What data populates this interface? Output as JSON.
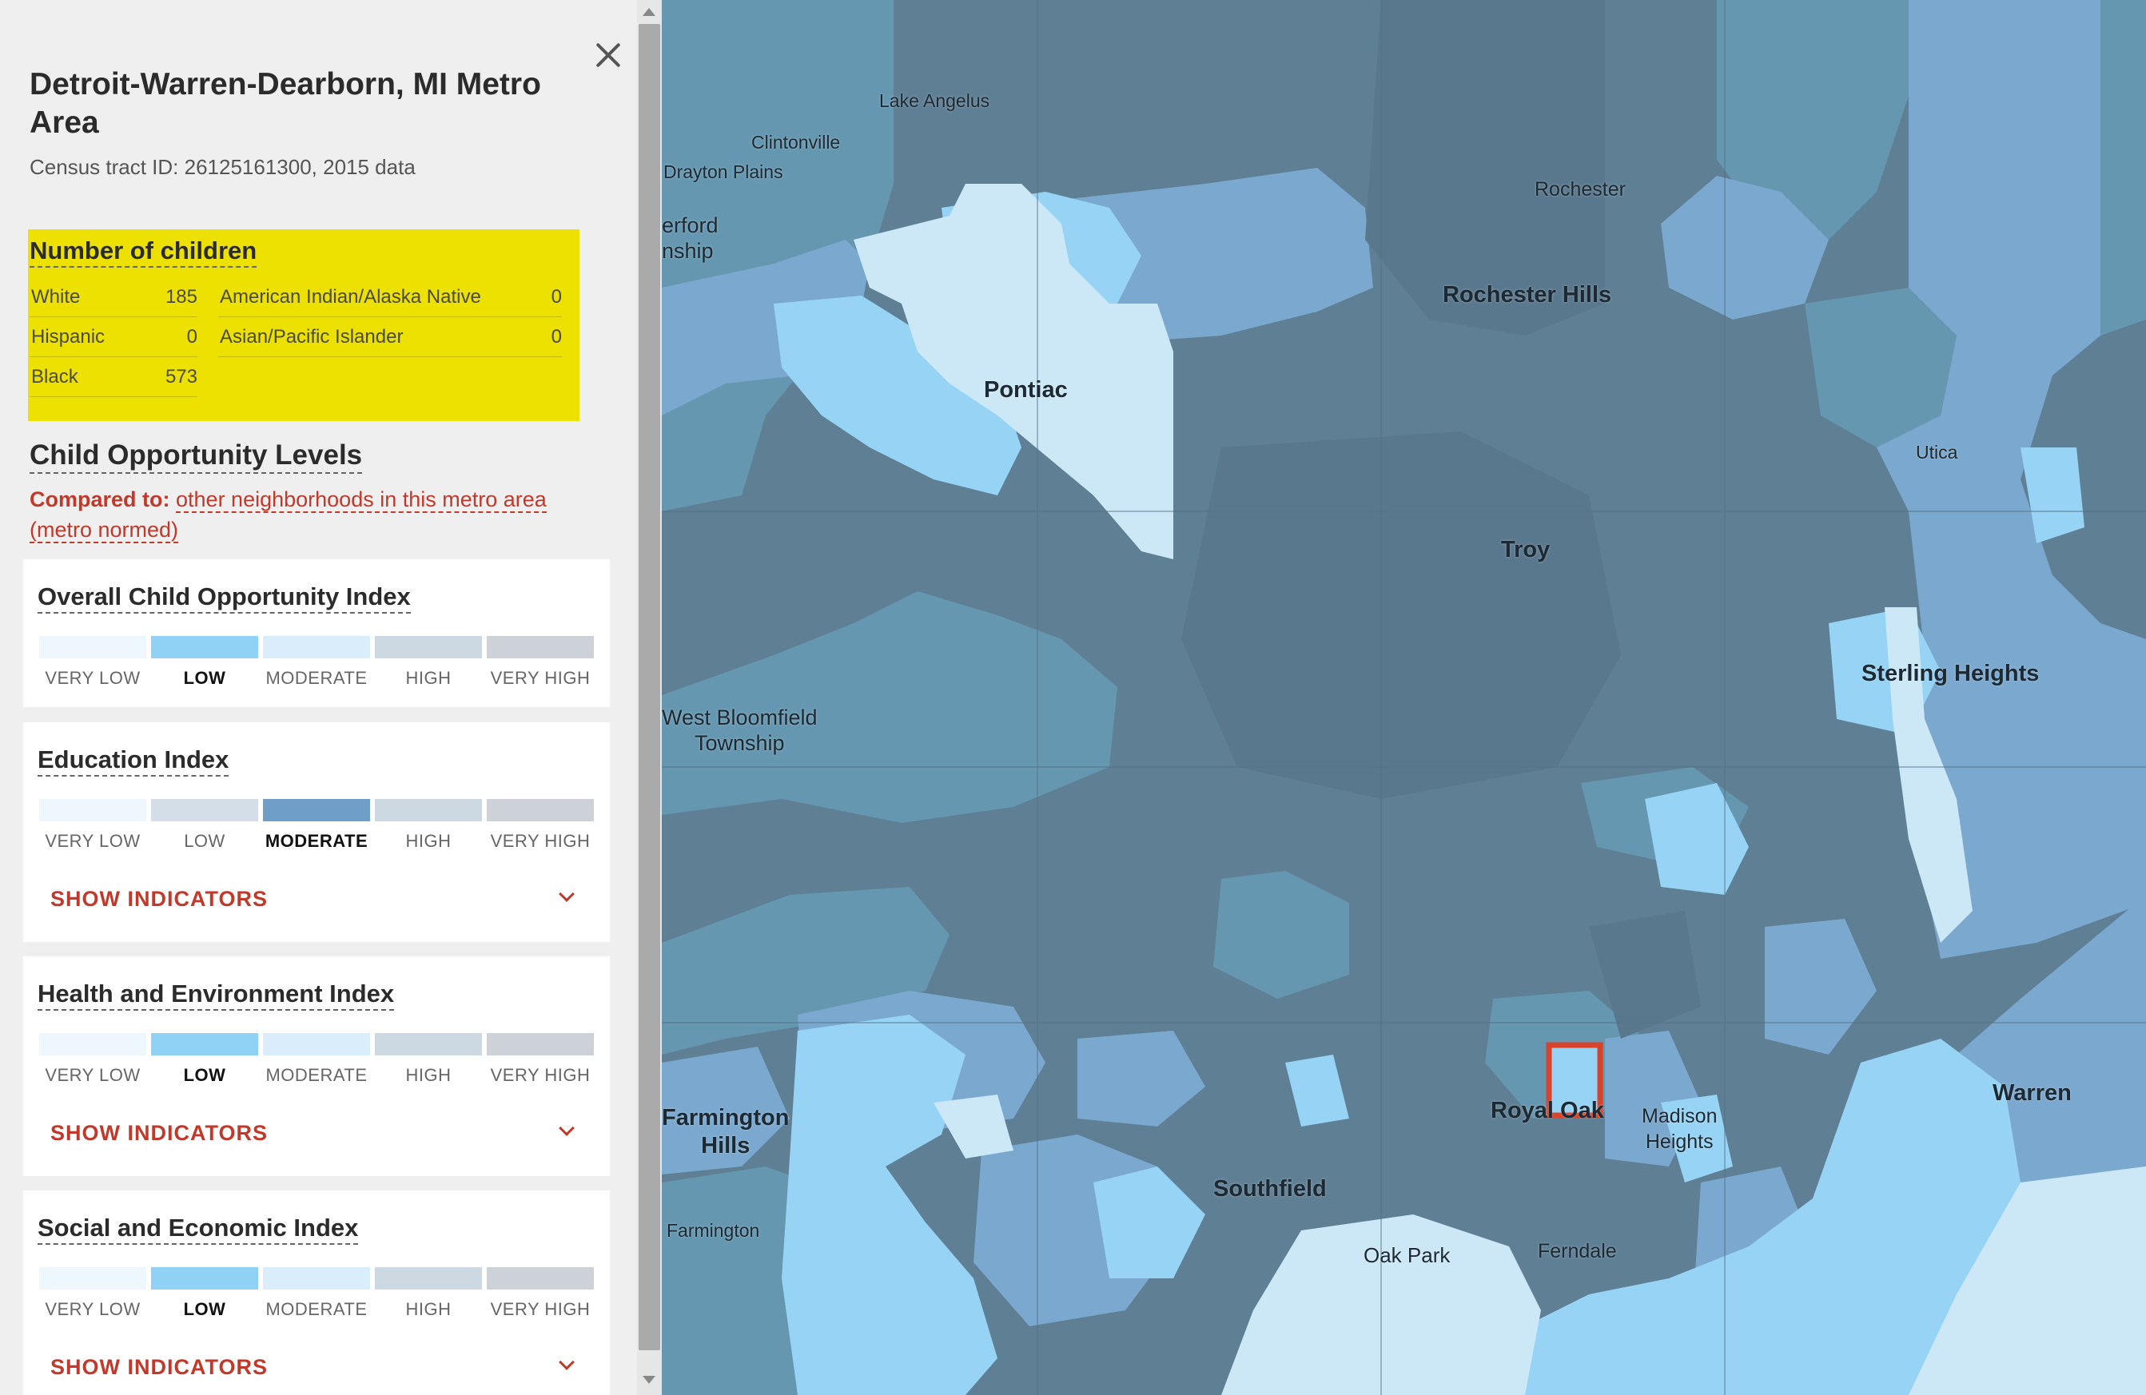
{
  "panel": {
    "metro_title": "Detroit-Warren-Dearborn, MI Metro Area",
    "tract_info": "Census tract ID: 26125161300, 2015 data",
    "children": {
      "title": "Number of children",
      "rows": [
        {
          "label": "White",
          "value": "185"
        },
        {
          "label": "Hispanic",
          "value": "0"
        },
        {
          "label": "Black",
          "value": "573"
        },
        {
          "label": "American Indian/Alaska Native",
          "value": "0"
        },
        {
          "label": "Asian/Pacific Islander",
          "value": "0"
        }
      ]
    },
    "opportunity_title": "Child Opportunity Levels",
    "compared_prefix": "Compared to:",
    "compared_text": "other neighborhoods in this metro area (metro normed)",
    "levels": [
      "VERY LOW",
      "LOW",
      "MODERATE",
      "HIGH",
      "VERY HIGH"
    ],
    "show_indicators_label": "SHOW INDICATORS",
    "indices": [
      {
        "name": "Overall Child Opportunity Index",
        "selected": "LOW"
      },
      {
        "name": "Education Index",
        "selected": "MODERATE"
      },
      {
        "name": "Health and Environment Index",
        "selected": "LOW"
      },
      {
        "name": "Social and Economic Index",
        "selected": "LOW"
      }
    ],
    "colors": {
      "very_low": "#eef7fd",
      "low": "#8fd2f5",
      "moderate_light": "#d9eefa",
      "moderate_selected": "#6f9fc9",
      "high": "#ccd9e2",
      "very_high": "#cdd2d8",
      "low_unselected": "#d4dee9",
      "accent_red": "#c0392b",
      "highlight_yellow": "#ece100"
    }
  },
  "map": {
    "places": [
      {
        "name": "Lake Angelus",
        "size": "small"
      },
      {
        "name": "Clintonville",
        "size": "small"
      },
      {
        "name": "Drayton Plains",
        "size": "small"
      },
      {
        "name": "erford\nnship",
        "size": "small"
      },
      {
        "name": "Rochester",
        "size": "small"
      },
      {
        "name": "Rochester Hills",
        "size": "big"
      },
      {
        "name": "Pontiac",
        "size": "big"
      },
      {
        "name": "Utica",
        "size": "small"
      },
      {
        "name": "Troy",
        "size": "big"
      },
      {
        "name": "Sterling Heights",
        "size": "big"
      },
      {
        "name": "West Bloomfield\nTownship",
        "size": "small"
      },
      {
        "name": "Farmington\nHills",
        "size": "big"
      },
      {
        "name": "Royal Oak",
        "size": "big"
      },
      {
        "name": "Madison\nHeights",
        "size": "small"
      },
      {
        "name": "Warren",
        "size": "big"
      },
      {
        "name": "Southfield",
        "size": "big"
      },
      {
        "name": "Farmington",
        "size": "small"
      },
      {
        "name": "Oak Park",
        "size": "small"
      },
      {
        "name": "Ferndale",
        "size": "small"
      }
    ],
    "colors": {
      "very_high": "#5f7f95",
      "high": "#6597b0",
      "moderate": "#7ba8ce",
      "low": "#96d3f5",
      "very_low": "#cce8f7",
      "selected_outline": "#d9432a"
    }
  }
}
